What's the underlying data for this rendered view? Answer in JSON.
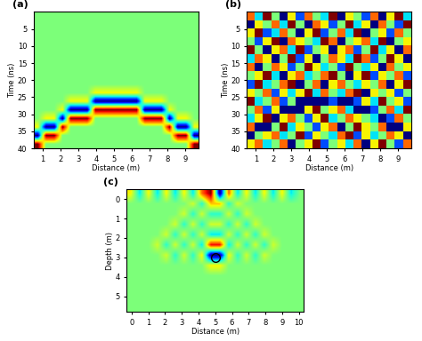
{
  "chart_data": [
    {
      "type": "heatmap",
      "title": "(a)",
      "x_label": "Distance (m)",
      "y_label": "Time (ns)",
      "xlim": [
        0.5,
        9.75
      ],
      "ylim": [
        40,
        0
      ],
      "xticks": [
        1,
        2,
        3,
        4,
        5,
        6,
        7,
        8,
        9
      ],
      "yticks": [
        5,
        10,
        15,
        20,
        25,
        30,
        35,
        40
      ],
      "cells": [
        [
          0,
          0,
          0,
          0,
          0,
          0,
          0,
          0,
          0,
          0,
          0,
          0,
          0,
          0,
          0,
          0,
          0,
          0,
          0,
          0
        ],
        [
          0,
          0,
          0,
          0,
          0,
          0,
          0,
          0,
          0,
          0,
          0,
          0,
          0,
          0,
          0,
          0,
          0,
          0,
          0,
          0
        ],
        [
          0,
          0,
          0,
          0,
          0,
          0,
          0,
          0,
          0,
          0,
          0,
          0,
          0,
          0,
          0,
          0,
          0,
          0,
          0,
          0
        ],
        [
          0,
          0,
          0,
          0,
          0,
          0,
          0,
          0,
          0,
          0,
          0,
          0,
          0,
          0,
          0,
          0,
          0,
          0,
          0,
          0
        ],
        [
          0,
          0,
          0,
          0,
          0,
          0,
          0,
          0,
          0,
          0,
          0,
          0,
          0,
          0,
          0,
          0,
          0,
          0,
          0,
          0
        ],
        [
          0,
          0,
          0,
          0,
          0,
          0,
          0,
          0,
          0,
          0,
          0,
          0,
          0,
          0,
          0,
          0,
          0,
          0,
          0,
          0
        ],
        [
          0,
          0,
          0,
          0,
          0,
          0,
          0,
          0,
          0,
          0,
          0,
          0,
          0,
          0,
          0,
          0,
          0,
          0,
          0,
          0
        ],
        [
          0,
          0,
          0,
          0,
          0,
          0,
          0,
          0,
          0,
          0,
          0,
          0,
          0,
          0,
          0,
          0,
          0,
          0,
          0,
          0
        ],
        [
          0,
          0,
          0,
          0,
          0,
          0,
          0,
          0,
          0,
          0,
          0,
          0,
          0,
          0,
          0,
          0,
          0,
          0,
          0,
          0
        ],
        [
          0,
          0,
          0,
          0,
          0,
          0,
          0,
          0.3,
          0.3,
          0.3,
          0.3,
          0.3,
          0.3,
          0,
          0,
          0,
          0,
          0,
          0,
          0
        ],
        [
          0,
          0,
          0,
          0,
          0.3,
          0.3,
          0.3,
          -1,
          -1,
          -1,
          -1,
          -1,
          -1,
          0.3,
          0.3,
          0.3,
          0,
          0,
          0,
          0
        ],
        [
          0,
          0,
          0,
          0.3,
          -1,
          -1,
          -1,
          1,
          1,
          1,
          1,
          1,
          1,
          -1,
          -1,
          -1,
          0.3,
          0,
          0,
          0
        ],
        [
          0,
          0.3,
          0.3,
          -1,
          1,
          1,
          1,
          0,
          0,
          0,
          0,
          0,
          0,
          1,
          1,
          1,
          -1,
          0.3,
          0.3,
          0
        ],
        [
          0.3,
          -1,
          -1,
          1,
          0,
          0,
          0,
          0,
          0,
          0,
          0,
          0,
          0,
          0,
          0,
          0,
          1,
          -1,
          -1,
          0.3
        ],
        [
          -1,
          1,
          1,
          0,
          0,
          0,
          0,
          0,
          0,
          0,
          0,
          0,
          0,
          0,
          0,
          0,
          0,
          1,
          1,
          -1
        ],
        [
          1,
          0,
          0,
          0,
          0,
          0,
          0,
          0,
          0,
          0,
          0,
          0,
          0,
          0,
          0,
          0,
          0,
          0,
          0,
          1
        ]
      ]
    },
    {
      "type": "heatmap",
      "title": "(b)",
      "x_label": "Distance (m)",
      "y_label": "Time (ns)",
      "xlim": [
        0.5,
        9.75
      ],
      "ylim": [
        40,
        0
      ],
      "xticks": [
        1,
        2,
        3,
        4,
        5,
        6,
        7,
        8,
        9
      ],
      "yticks": [
        5,
        10,
        15,
        20,
        25,
        30,
        35,
        40
      ],
      "cells": [
        [
          0.6,
          -0.3,
          1,
          0,
          -1,
          0.3,
          -0.6,
          0.6,
          0,
          -0.3,
          1,
          -1,
          0.3,
          0,
          -0.6,
          0.6,
          -1,
          0.3,
          1,
          -0.3
        ],
        [
          -1,
          0.3,
          0,
          0.6,
          -0.3,
          1,
          0,
          -1,
          0.6,
          0.3,
          -0.6,
          0,
          1,
          -0.3,
          0.3,
          -1,
          0.6,
          0,
          -0.6,
          1
        ],
        [
          0.3,
          1,
          -0.6,
          -0.3,
          0.6,
          0,
          -1,
          0.3,
          1,
          -0.6,
          0,
          0.6,
          -0.3,
          1,
          -1,
          0,
          0.3,
          -0.6,
          0.6,
          0
        ],
        [
          0,
          -0.6,
          0.3,
          1,
          -1,
          0.6,
          0.3,
          0,
          -0.3,
          1,
          0.6,
          -1,
          0,
          0.3,
          0.6,
          -0.3,
          1,
          -1,
          0,
          0.3
        ],
        [
          1,
          0,
          -1,
          0.3,
          0.6,
          -0.3,
          1,
          -0.6,
          0,
          0.3,
          -1,
          0.3,
          0.6,
          -0.6,
          0,
          1,
          -0.3,
          0.3,
          -1,
          0.6
        ],
        [
          -0.3,
          0.6,
          0.3,
          -1,
          0,
          1,
          -0.6,
          0.3,
          -1,
          0,
          0.6,
          0.3,
          -0.3,
          1,
          0.6,
          -0.6,
          0,
          1,
          0.3,
          -1
        ],
        [
          0.6,
          -1,
          0,
          0.6,
          0.3,
          -0.6,
          0,
          1,
          0.3,
          -0.3,
          0,
          -0.6,
          1,
          0,
          -0.3,
          0.3,
          -1,
          0.6,
          0,
          0.3
        ],
        [
          0,
          0.3,
          1,
          -0.3,
          -1,
          0.3,
          0.6,
          -0.3,
          0,
          0.6,
          1,
          0,
          -1,
          0.3,
          1,
          -0.6,
          0.3,
          0,
          0.6,
          -0.6
        ],
        [
          -0.6,
          1,
          -0.3,
          0,
          0.6,
          1,
          -1,
          0,
          0.6,
          -1,
          0.3,
          0.6,
          0,
          -0.3,
          0.3,
          0,
          0.6,
          -1,
          0.3,
          1
        ],
        [
          0.3,
          0,
          0.6,
          -0.6,
          0.3,
          -0.3,
          0.3,
          1,
          -0.3,
          0.6,
          0,
          -0.3,
          0.6,
          1,
          -1,
          0.3,
          0,
          0.3,
          -0.6,
          0
        ],
        [
          1,
          -0.3,
          0,
          0.6,
          -0.6,
          0,
          -1,
          -1,
          -1,
          -1,
          -0.6,
          -1,
          -1,
          -0.6,
          0.3,
          -0.3,
          1,
          0,
          0.3,
          -0.6
        ],
        [
          0,
          0.6,
          -0.6,
          0.3,
          -1,
          -1,
          -1,
          0.3,
          1,
          0,
          0.3,
          0.6,
          -0.3,
          -1,
          -1,
          -0.6,
          0,
          0.6,
          -0.3,
          1
        ],
        [
          -0.3,
          0.3,
          1,
          -1,
          0.3,
          0.6,
          0,
          -0.6,
          0.3,
          1,
          -0.3,
          0,
          0.6,
          0.3,
          0,
          -0.3,
          -1,
          -0.6,
          0.6,
          0
        ],
        [
          0.6,
          -1,
          -1,
          0,
          1,
          -0.3,
          0.3,
          0,
          -0.6,
          0.3,
          0.6,
          -1,
          0,
          1,
          0.3,
          0,
          0.6,
          -1,
          -1,
          0.3
        ],
        [
          -1,
          0,
          0.3,
          0.6,
          -0.3,
          0,
          1,
          -0.6,
          0.3,
          0,
          -0.3,
          0.6,
          1,
          -0.6,
          0.3,
          -0.3,
          0,
          0.6,
          0.3,
          -1
        ],
        [
          0.3,
          0.6,
          -0.3,
          0,
          0.6,
          -1,
          0,
          0.3,
          1,
          -0.6,
          0,
          0.3,
          -0.3,
          0.6,
          -1,
          0.3,
          1,
          0,
          -0.6,
          0.6
        ]
      ]
    },
    {
      "type": "heatmap",
      "title": "(c)",
      "x_label": "Distance (m)",
      "y_label": "Depth (m)",
      "xlim": [
        -0.3,
        10.3
      ],
      "ylim": [
        5.8,
        -0.5
      ],
      "xticks": [
        0,
        1,
        2,
        3,
        4,
        5,
        6,
        7,
        8,
        9,
        10
      ],
      "yticks": [
        0,
        1,
        2,
        3,
        4,
        5
      ],
      "circle": {
        "x": 5,
        "y": 3
      },
      "cells": [
        [
          0.3,
          -0.3,
          0.3,
          -0.3,
          0.3,
          -0.3,
          0.3,
          -0.3,
          0.6,
          1,
          -1,
          0.6,
          -0.3,
          0.3,
          -0.3,
          0.3,
          -0.3,
          0.3,
          -0.3,
          0
        ],
        [
          0,
          0,
          0,
          0,
          0,
          0,
          0,
          0.2,
          -0.2,
          0.4,
          0.4,
          -0.2,
          0.2,
          0,
          0,
          0,
          0,
          0,
          0,
          0
        ],
        [
          0,
          0,
          0,
          0,
          0,
          0,
          0.2,
          -0.2,
          0.2,
          -0.2,
          -0.2,
          0.2,
          -0.2,
          0.2,
          0,
          0,
          0,
          0,
          0,
          0
        ],
        [
          0,
          0,
          0,
          0,
          0,
          0.2,
          -0.2,
          0.2,
          -0.2,
          0.2,
          0.2,
          -0.2,
          0.2,
          -0.2,
          0.2,
          0,
          0,
          0,
          0,
          0
        ],
        [
          0,
          0,
          0,
          0,
          0.2,
          -0.2,
          0.2,
          -0.2,
          0.2,
          -0.3,
          -0.3,
          0.2,
          -0.2,
          0.2,
          -0.2,
          0.2,
          0,
          0,
          0,
          0
        ],
        [
          0,
          0,
          0,
          0.2,
          -0.2,
          0.2,
          -0.2,
          0.2,
          -0.3,
          0.8,
          0.8,
          -0.3,
          0.2,
          -0.2,
          0.2,
          -0.2,
          0.2,
          0,
          0,
          0
        ],
        [
          0,
          0,
          0,
          0,
          0.2,
          -0.2,
          0.2,
          -0.2,
          0.3,
          -1,
          -1,
          0.3,
          -0.2,
          0.2,
          -0.2,
          0.2,
          0,
          0,
          0,
          0
        ],
        [
          0,
          0,
          0,
          0,
          0,
          0,
          0,
          0,
          0,
          0.3,
          0.3,
          0,
          0,
          0,
          0,
          0,
          0,
          0,
          0,
          0
        ],
        [
          0,
          0,
          0,
          0,
          0,
          0,
          0,
          0,
          0,
          0,
          0,
          0,
          0,
          0,
          0,
          0,
          0,
          0,
          0,
          0
        ],
        [
          0,
          0,
          0,
          0,
          0,
          0,
          0,
          0,
          0,
          0,
          0,
          0,
          0,
          0,
          0,
          0,
          0,
          0,
          0,
          0
        ],
        [
          0,
          0,
          0,
          0,
          0,
          0,
          0,
          0,
          0,
          0,
          0,
          0,
          0,
          0,
          0,
          0,
          0,
          0,
          0,
          0
        ],
        [
          0,
          0,
          0,
          0,
          0,
          0,
          0,
          0,
          0,
          0,
          0,
          0,
          0,
          0,
          0,
          0,
          0,
          0,
          0,
          0
        ]
      ]
    }
  ]
}
